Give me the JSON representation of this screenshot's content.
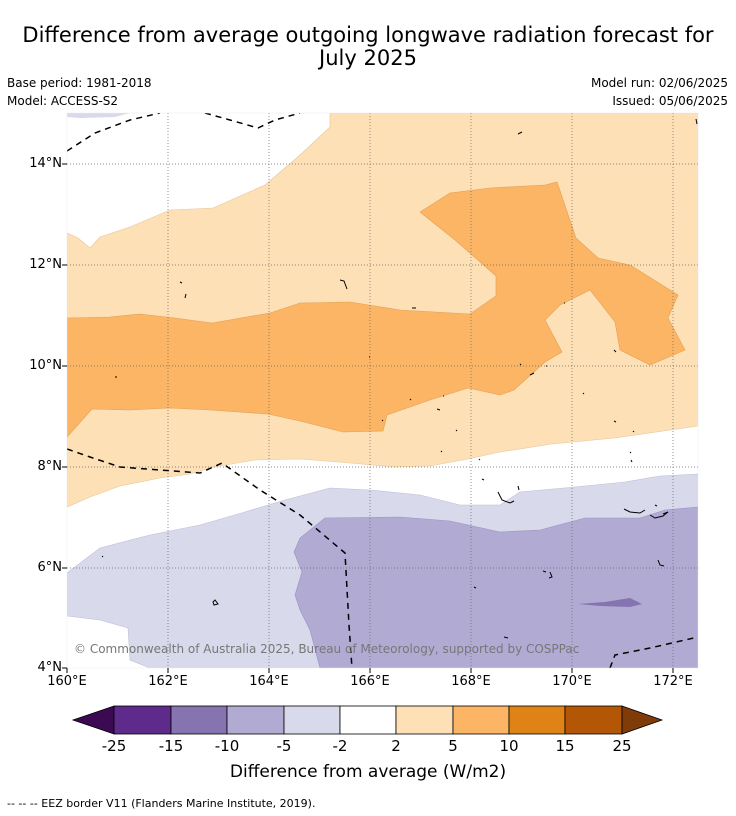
{
  "title_line1": "Difference from average outgoing longwave radiation forecast for",
  "title_line2": "July 2025",
  "base_period": "Base period: 1981-2018",
  "model": "Model: ACCESS-S2",
  "model_run": "Model run: 02/06/2025",
  "issued": "Issued: 05/06/2025",
  "lat_labels": [
    "14°N",
    "12°N",
    "10°N",
    "8°N",
    "6°N",
    "4°N"
  ],
  "lon_labels": [
    "160°E",
    "162°E",
    "164°E",
    "166°E",
    "168°E",
    "170°E",
    "172°E"
  ],
  "copyright": "© Commonwealth of Australia 2025, Bureau of Meteorology, supported by COSPPac",
  "colorbar": {
    "title": "Difference from average (W/m2)",
    "ticks": [
      "-25",
      "-15",
      "-10",
      "-5",
      "-2",
      "2",
      "5",
      "10",
      "15",
      "25"
    ],
    "colors": {
      "below_-25": "#3b0a52",
      "-25_-15": "#5e2a8c",
      "-15_-10": "#8574b0",
      "-10_-5": "#b1aad3",
      "-5_-2": "#d9d9ec",
      "-2_2": "#ffffff",
      "2_5": "#fde0b6",
      "5_10": "#fbb565",
      "10_15": "#e08317",
      "15_25": "#b35606",
      "above_25": "#7f3b08"
    }
  },
  "footnote": "--  --  -- EEZ border V11 (Flanders Marine Institute, 2019)."
}
